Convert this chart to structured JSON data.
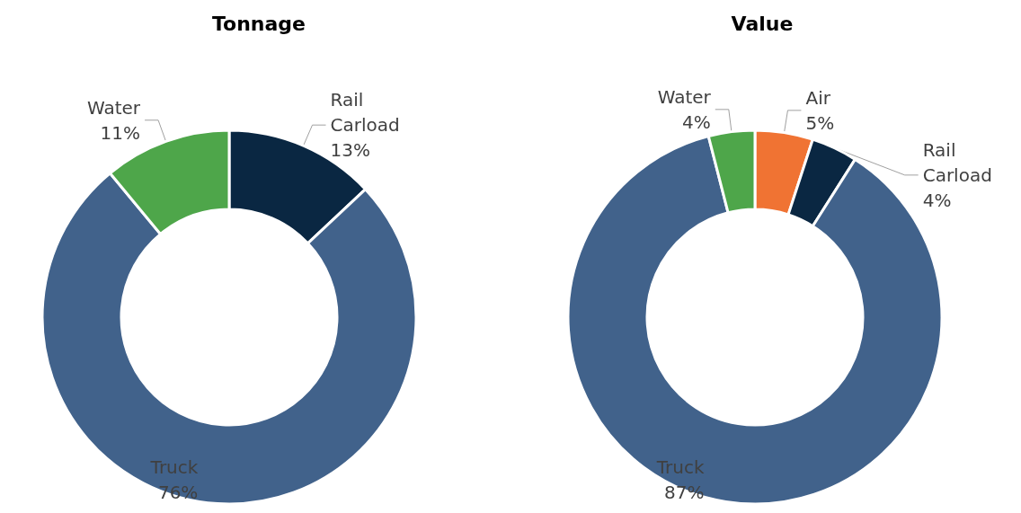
{
  "chart_data": [
    {
      "type": "donut",
      "title": "Tonnage",
      "categories": [
        "Rail Carload",
        "Truck",
        "Water"
      ],
      "values": [
        13,
        76,
        11
      ],
      "colors": [
        "#0a2742",
        "#41628b",
        "#4ea64a"
      ],
      "value_labels": [
        "13%",
        "76%",
        "11%"
      ]
    },
    {
      "type": "donut",
      "title": "Value",
      "categories": [
        "Air",
        "Rail Carload",
        "Truck",
        "Water"
      ],
      "values": [
        5,
        4,
        87,
        4
      ],
      "colors": [
        "#f07333",
        "#0a2742",
        "#41628b",
        "#4ea64a"
      ],
      "value_labels": [
        "5%",
        "4%",
        "87%",
        "4%"
      ]
    }
  ]
}
